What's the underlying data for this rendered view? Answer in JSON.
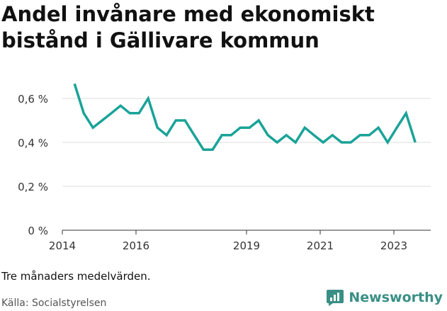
{
  "title": "Andel invånare med ekonomiskt bistånd i Gällivare kommun",
  "note": "Tre månaders medelvärden.",
  "source": "Källa: Socialstyrelsen",
  "brand": {
    "name": "Newsworthy",
    "icon": "newsworthy-logo-icon",
    "color": "#3a8f85"
  },
  "chart_data": {
    "type": "line",
    "title": "Andel invånare med ekonomiskt bistånd i Gällivare kommun",
    "xlabel": "",
    "ylabel": "",
    "xlim": [
      2014,
      2024
    ],
    "ylim": [
      0,
      0.7
    ],
    "x_ticks": [
      2014,
      2016,
      2019,
      2021,
      2023
    ],
    "y_ticks": [
      {
        "value": 0,
        "label": "0 %"
      },
      {
        "value": 0.2,
        "label": "0,2 %"
      },
      {
        "value": 0.4,
        "label": "0,4 %"
      },
      {
        "value": 0.6,
        "label": "0,6 %"
      }
    ],
    "grid": true,
    "line_color": "#1aa398",
    "series": [
      {
        "name": "",
        "x": [
          2014.33,
          2014.58,
          2014.83,
          2015.08,
          2015.33,
          2015.58,
          2015.83,
          2016.08,
          2016.33,
          2016.58,
          2016.83,
          2017.08,
          2017.33,
          2017.58,
          2017.83,
          2018.08,
          2018.33,
          2018.58,
          2018.83,
          2019.08,
          2019.33,
          2019.58,
          2019.83,
          2020.08,
          2020.33,
          2020.58,
          2020.83,
          2021.08,
          2021.33,
          2021.58,
          2021.83,
          2022.08,
          2022.33,
          2022.58,
          2022.83,
          2023.08,
          2023.33,
          2023.58
        ],
        "values": [
          0.667,
          0.533,
          0.467,
          0.5,
          0.533,
          0.567,
          0.533,
          0.533,
          0.6,
          0.467,
          0.433,
          0.5,
          0.5,
          0.433,
          0.367,
          0.367,
          0.433,
          0.433,
          0.467,
          0.467,
          0.5,
          0.433,
          0.4,
          0.433,
          0.4,
          0.467,
          0.433,
          0.4,
          0.433,
          0.4,
          0.4,
          0.433,
          0.433,
          0.467,
          0.4,
          0.467,
          0.533,
          0.4
        ]
      }
    ]
  }
}
